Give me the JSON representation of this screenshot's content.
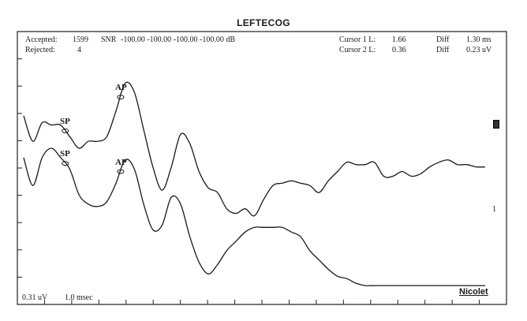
{
  "title": "LEFTECOG",
  "header": {
    "accepted_label": "Accepted:",
    "accepted_value": "1599",
    "rejected_label": "Rejected:",
    "rejected_value": "4",
    "snr_label": "SNR",
    "snr_values": "-100.00 -100.00 -100.00 -100.00 dB",
    "cursor1_label": "Cursor 1 L:",
    "cursor1_value": "1.66",
    "cursor2_label": "Cursor 2 L:",
    "cursor2_value": "0.36",
    "diff1_label": "Diff",
    "diff1_value": "1.30 ms",
    "diff2_label": "Diff",
    "diff2_value": "0.23 uV"
  },
  "footer": {
    "amplitude_scale": "0.31 uV",
    "time_scale": "1.0 msec",
    "brand": "Nicolet"
  },
  "channel_label": "1",
  "chart_data": {
    "type": "line",
    "title": "LEFTECOG",
    "xlabel": "",
    "ylabel": "",
    "grid": false,
    "x_divisions": 10,
    "y_divisions": 10,
    "scale": {
      "amplitude_per_div": "0.31 uV",
      "time_per_div": "1.0 msec"
    },
    "series": [
      {
        "x": [
          0,
          0.2,
          0.4,
          0.6,
          0.8,
          1.0,
          1.2,
          1.4,
          1.6,
          1.8,
          2.0,
          2.2,
          2.4,
          2.6,
          2.8,
          3.0,
          3.2,
          3.4,
          3.6,
          3.8,
          4.0,
          4.2,
          4.4,
          4.6,
          4.8,
          5.0,
          5.2,
          5.4,
          5.6,
          5.8,
          6.0,
          6.2,
          6.4,
          6.6,
          6.8,
          7.0,
          7.2,
          7.4,
          7.6,
          7.8,
          8.0,
          8.2,
          8.4,
          8.6,
          8.8,
          9.0,
          9.2,
          9.4,
          9.6,
          9.8,
          10.0
        ],
        "y": [
          7.4,
          6.3,
          7.1,
          7.0,
          7.0,
          6.5,
          6.0,
          6.3,
          6.3,
          6.5,
          7.6,
          8.8,
          8.4,
          6.8,
          5.2,
          4.2,
          5.2,
          6.6,
          6.2,
          5.0,
          4.3,
          4.1,
          3.4,
          3.2,
          3.4,
          3.1,
          3.8,
          4.4,
          4.5,
          4.6,
          4.5,
          4.4,
          4.1,
          4.6,
          5.0,
          5.4,
          5.3,
          5.3,
          5.4,
          4.8,
          4.8,
          5.0,
          4.8,
          4.9,
          5.2,
          5.4,
          5.5,
          5.3,
          5.3,
          5.2,
          5.2
        ]
      },
      {
        "x": [
          0,
          0.2,
          0.4,
          0.6,
          0.8,
          1.0,
          1.2,
          1.4,
          1.6,
          1.8,
          2.0,
          2.2,
          2.4,
          2.6,
          2.8,
          3.0,
          3.2,
          3.4,
          3.6,
          3.8,
          4.0,
          4.2,
          4.4,
          4.6,
          4.8,
          5.0,
          5.2,
          5.4,
          5.6,
          5.8,
          6.0,
          6.2,
          6.4,
          6.6,
          6.8,
          7.0,
          7.2,
          7.4,
          7.6,
          7.8,
          8.0,
          8.2,
          8.4,
          8.6,
          8.8,
          9.0,
          9.2,
          9.4,
          9.6,
          9.8,
          10.0
        ],
        "y": [
          5.6,
          4.4,
          5.6,
          6.0,
          5.6,
          5.1,
          4.0,
          3.6,
          3.5,
          3.7,
          4.5,
          5.5,
          5.1,
          3.6,
          2.5,
          2.7,
          3.9,
          3.6,
          2.2,
          1.1,
          0.6,
          1.0,
          1.6,
          2.0,
          2.4,
          2.6,
          2.6,
          2.6,
          2.6,
          2.4,
          2.2,
          1.6,
          1.2,
          0.8,
          0.5,
          0.4,
          0.2,
          0.1,
          0.1,
          0.1,
          0.1,
          0.1,
          0.1,
          0.1,
          0.1,
          0.1,
          0.1,
          0.1,
          0.1,
          0.1,
          0.1
        ]
      }
    ],
    "annotations": [
      {
        "label": "SP",
        "series": 0,
        "x": 0.9
      },
      {
        "label": "AP",
        "series": 0,
        "x": 2.1
      },
      {
        "label": "SP",
        "series": 1,
        "x": 0.9
      },
      {
        "label": "AP",
        "series": 1,
        "x": 2.1
      }
    ]
  }
}
